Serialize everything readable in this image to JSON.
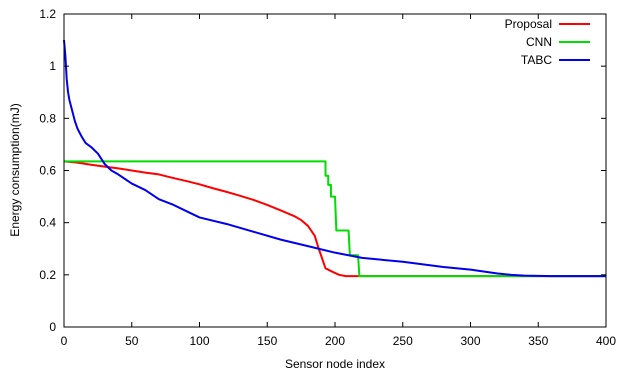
{
  "chart_data": {
    "type": "line",
    "xlabel": "Sensor node index",
    "ylabel": "Energy consumption(mJ)",
    "xlim": [
      0,
      400
    ],
    "ylim": [
      0,
      1.2
    ],
    "x_ticks": [
      0,
      50,
      100,
      150,
      200,
      250,
      300,
      350,
      400
    ],
    "y_ticks": [
      0,
      0.2,
      0.4,
      0.6,
      0.8,
      1,
      1.2
    ],
    "x_tick_labels": [
      "0",
      "50",
      "100",
      "150",
      "200",
      "250",
      "300",
      "350",
      "400"
    ],
    "y_tick_labels": [
      "0",
      "0.2",
      "0.4",
      "0.6",
      "0.8",
      "1",
      "1.2"
    ],
    "grid": false,
    "legend_position": "top-right",
    "series": [
      {
        "name": "Proposal",
        "color": "#ff0000",
        "points": [
          [
            0,
            0.635
          ],
          [
            10,
            0.63
          ],
          [
            20,
            0.622
          ],
          [
            30,
            0.615
          ],
          [
            40,
            0.608
          ],
          [
            50,
            0.6
          ],
          [
            60,
            0.592
          ],
          [
            70,
            0.585
          ],
          [
            80,
            0.572
          ],
          [
            90,
            0.56
          ],
          [
            100,
            0.547
          ],
          [
            110,
            0.532
          ],
          [
            120,
            0.518
          ],
          [
            130,
            0.503
          ],
          [
            140,
            0.487
          ],
          [
            150,
            0.468
          ],
          [
            160,
            0.447
          ],
          [
            170,
            0.425
          ],
          [
            175,
            0.41
          ],
          [
            180,
            0.388
          ],
          [
            185,
            0.35
          ],
          [
            188,
            0.3
          ],
          [
            190,
            0.27
          ],
          [
            193,
            0.225
          ],
          [
            198,
            0.212
          ],
          [
            203,
            0.2
          ],
          [
            208,
            0.195
          ],
          [
            215,
            0.195
          ],
          [
            400,
            0.195
          ]
        ]
      },
      {
        "name": "CNN",
        "color": "#00dd00",
        "points": [
          [
            0,
            0.635
          ],
          [
            193,
            0.635
          ],
          [
            193,
            0.58
          ],
          [
            195,
            0.58
          ],
          [
            195,
            0.545
          ],
          [
            197,
            0.545
          ],
          [
            197,
            0.5
          ],
          [
            200,
            0.5
          ],
          [
            201,
            0.37
          ],
          [
            210,
            0.37
          ],
          [
            211,
            0.275
          ],
          [
            217,
            0.275
          ],
          [
            218,
            0.195
          ],
          [
            400,
            0.195
          ]
        ]
      },
      {
        "name": "TABC",
        "color": "#0000ee",
        "points": [
          [
            0,
            1.1
          ],
          [
            1,
            1.04
          ],
          [
            2,
            0.95
          ],
          [
            3,
            0.9
          ],
          [
            4,
            0.87
          ],
          [
            6,
            0.83
          ],
          [
            8,
            0.79
          ],
          [
            10,
            0.76
          ],
          [
            13,
            0.73
          ],
          [
            16,
            0.705
          ],
          [
            20,
            0.69
          ],
          [
            25,
            0.665
          ],
          [
            30,
            0.625
          ],
          [
            35,
            0.6
          ],
          [
            40,
            0.585
          ],
          [
            50,
            0.55
          ],
          [
            60,
            0.525
          ],
          [
            70,
            0.49
          ],
          [
            80,
            0.47
          ],
          [
            90,
            0.445
          ],
          [
            100,
            0.42
          ],
          [
            120,
            0.395
          ],
          [
            140,
            0.365
          ],
          [
            160,
            0.335
          ],
          [
            180,
            0.31
          ],
          [
            200,
            0.285
          ],
          [
            220,
            0.265
          ],
          [
            250,
            0.25
          ],
          [
            280,
            0.23
          ],
          [
            300,
            0.22
          ],
          [
            320,
            0.205
          ],
          [
            330,
            0.2
          ],
          [
            340,
            0.197
          ],
          [
            360,
            0.195
          ],
          [
            400,
            0.195
          ]
        ]
      }
    ]
  }
}
